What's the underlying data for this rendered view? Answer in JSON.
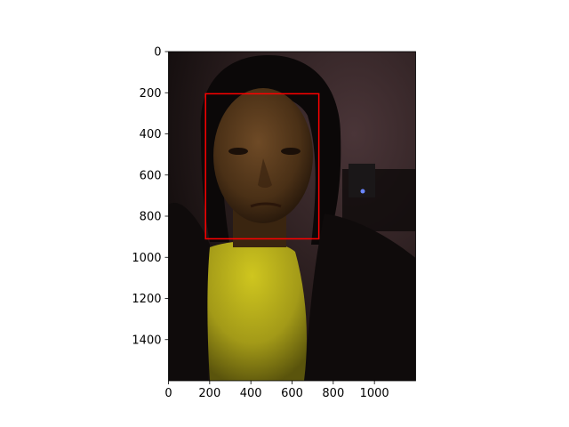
{
  "chart_data": {
    "type": "image",
    "title": "",
    "xlabel": "",
    "ylabel": "",
    "xlim": [
      0,
      1200
    ],
    "ylim": [
      1600,
      0
    ],
    "grid": false,
    "legend": null,
    "x_ticks": [
      0,
      200,
      400,
      600,
      800,
      1000
    ],
    "x_tick_labels": [
      "0",
      "200",
      "400",
      "600",
      "800",
      "1000"
    ],
    "y_ticks": [
      0,
      200,
      400,
      600,
      800,
      1000,
      1200,
      1400
    ],
    "y_tick_labels": [
      "0",
      "200",
      "400",
      "600",
      "800",
      "1000",
      "1200",
      "1400"
    ],
    "image": {
      "subject": "photograph of a woman in a dark jacket and yellow knit sweater, dimly lit room",
      "width": 1200,
      "height": 1600
    },
    "annotations": [
      {
        "type": "rectangle",
        "label": "face-detection-box",
        "x0": 180,
        "y0": 205,
        "x1": 730,
        "y1": 910,
        "color": "#ff0000"
      }
    ]
  }
}
